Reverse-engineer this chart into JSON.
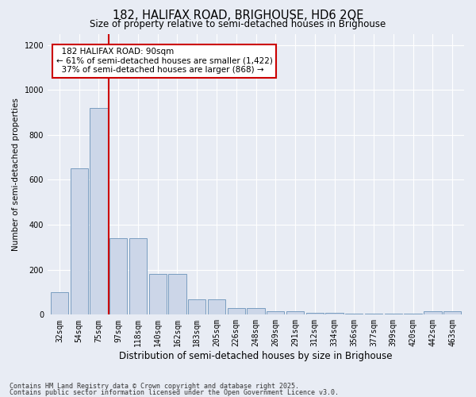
{
  "title1": "182, HALIFAX ROAD, BRIGHOUSE, HD6 2QE",
  "title2": "Size of property relative to semi-detached houses in Brighouse",
  "xlabel": "Distribution of semi-detached houses by size in Brighouse",
  "ylabel": "Number of semi-detached properties",
  "categories": [
    "32sqm",
    "54sqm",
    "75sqm",
    "97sqm",
    "118sqm",
    "140sqm",
    "162sqm",
    "183sqm",
    "205sqm",
    "226sqm",
    "248sqm",
    "269sqm",
    "291sqm",
    "312sqm",
    "334sqm",
    "356sqm",
    "377sqm",
    "399sqm",
    "420sqm",
    "442sqm",
    "463sqm"
  ],
  "values": [
    100,
    650,
    920,
    340,
    340,
    180,
    180,
    70,
    70,
    30,
    30,
    15,
    15,
    10,
    10,
    5,
    5,
    5,
    5,
    15,
    15
  ],
  "bar_color": "#ccd6e8",
  "bar_edge_color": "#7a9dc0",
  "vline_position": 2.5,
  "vline_color": "#cc0000",
  "annotation_title": "182 HALIFAX ROAD: 90sqm",
  "annotation_line1": "← 61% of semi-detached houses are smaller (1,422)",
  "annotation_line2": "37% of semi-detached houses are larger (868) →",
  "annotation_box_color": "#cc0000",
  "ylim": [
    0,
    1250
  ],
  "yticks": [
    0,
    200,
    400,
    600,
    800,
    1000,
    1200
  ],
  "footnote1": "Contains HM Land Registry data © Crown copyright and database right 2025.",
  "footnote2": "Contains public sector information licensed under the Open Government Licence v3.0.",
  "bg_color": "#e8ecf4",
  "plot_bg_color": "#e8ecf4"
}
